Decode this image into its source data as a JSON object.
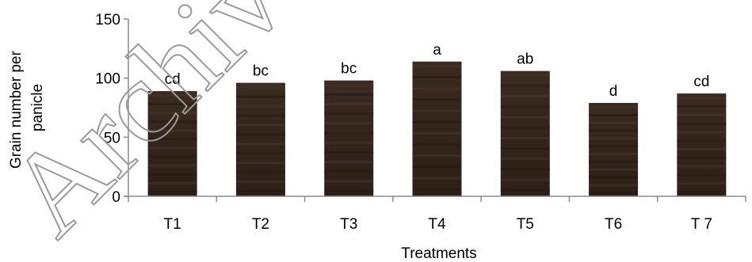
{
  "chart_data": {
    "type": "bar",
    "categories": [
      "T1",
      "T2",
      "T3",
      "T4",
      "T5",
      "T6",
      "T 7"
    ],
    "values": [
      89,
      96,
      98,
      114,
      106,
      79,
      87
    ],
    "significance_labels": [
      "cd",
      "bc",
      "bc",
      "a",
      "ab",
      "d",
      "cd"
    ],
    "xlabel": "Treatments",
    "ylabel_lines": [
      "Grain number per",
      "panicle"
    ],
    "ylim": [
      0,
      150
    ],
    "yticks": [
      0,
      50,
      100,
      150
    ],
    "grid": false,
    "legend": "none",
    "bar_color": "#3a2a20",
    "watermark": "Archive"
  }
}
